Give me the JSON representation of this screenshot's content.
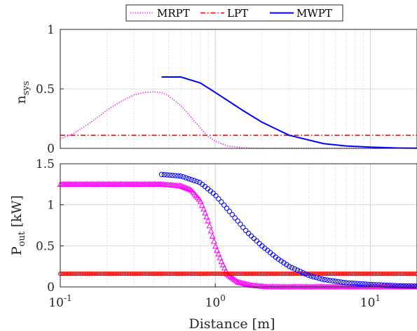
{
  "chart_data": [
    {
      "type": "line",
      "panel": "top",
      "ylabel": "n",
      "ylabel_sub": "sys",
      "xscale": "log",
      "xlim": [
        0.1,
        20
      ],
      "ylim": [
        0,
        1
      ],
      "yticks": [
        0,
        0.5,
        1
      ],
      "ytick_labels": [
        "0",
        "0.5",
        "1"
      ],
      "grid": true,
      "legend": {
        "position": "top-center",
        "orientation": "horizontal"
      },
      "series": [
        {
          "name": "MRPT",
          "color": "#ff00ff",
          "line_style": "dotted",
          "x": [
            0.1,
            0.12,
            0.15,
            0.2,
            0.25,
            0.3,
            0.35,
            0.4,
            0.45,
            0.5,
            0.6,
            0.7,
            0.8,
            0.9,
            1.0,
            1.2,
            1.5,
            2,
            20
          ],
          "y": [
            0.08,
            0.12,
            0.2,
            0.32,
            0.4,
            0.45,
            0.47,
            0.475,
            0.47,
            0.44,
            0.36,
            0.26,
            0.17,
            0.1,
            0.06,
            0.02,
            0.005,
            0.0,
            0.0
          ]
        },
        {
          "name": "LPT",
          "color": "#ff0000",
          "line_style": "dash-dot",
          "x": [
            0.1,
            20
          ],
          "y": [
            0.11,
            0.11
          ]
        },
        {
          "name": "MWPT",
          "color": "#0000ff",
          "line_style": "solid",
          "x": [
            0.45,
            0.6,
            0.8,
            1.0,
            1.5,
            2,
            3,
            5,
            7,
            10,
            15,
            20
          ],
          "y": [
            0.6,
            0.6,
            0.55,
            0.47,
            0.32,
            0.22,
            0.11,
            0.04,
            0.02,
            0.01,
            0.003,
            0.001
          ]
        }
      ]
    },
    {
      "type": "scatter",
      "panel": "bottom",
      "xlabel": "Distance [m]",
      "ylabel": "P",
      "ylabel_sub": "out",
      "ylabel_unit": "[kW]",
      "xscale": "log",
      "xlim": [
        0.1,
        20
      ],
      "ylim": [
        0,
        1.5
      ],
      "xticks": [
        0.1,
        1,
        10
      ],
      "xtick_labels": [
        {
          "base": "10",
          "exp": "-1"
        },
        {
          "base": "10",
          "exp": "0"
        },
        {
          "base": "10",
          "exp": "1"
        }
      ],
      "yticks": [
        0,
        0.5,
        1,
        1.5
      ],
      "ytick_labels": [
        "0",
        "0.5",
        "1",
        "1.5"
      ],
      "grid": true,
      "series": [
        {
          "name": "MRPT",
          "color": "#ff00ff",
          "marker": "triangle",
          "x": [
            0.1,
            0.2,
            0.3,
            0.45,
            0.6,
            0.7,
            0.8,
            0.9,
            1.0,
            1.1,
            1.2,
            1.4,
            1.7,
            2.2,
            3,
            5,
            10,
            20
          ],
          "y": [
            1.25,
            1.25,
            1.25,
            1.25,
            1.23,
            1.18,
            1.05,
            0.8,
            0.5,
            0.3,
            0.15,
            0.06,
            0.02,
            0.0,
            0.0,
            0.0,
            0.0,
            0.0
          ]
        },
        {
          "name": "LPT",
          "color": "#ff0000",
          "marker": "circle",
          "x": [
            0.1,
            20
          ],
          "y": [
            0.16,
            0.16
          ]
        },
        {
          "name": "MWPT",
          "color": "#0000ff",
          "marker": "circle",
          "x": [
            0.45,
            0.6,
            0.8,
            1.0,
            1.3,
            1.6,
            2,
            2.5,
            3,
            4,
            5,
            7,
            10,
            15,
            20
          ],
          "y": [
            1.37,
            1.35,
            1.27,
            1.12,
            0.87,
            0.67,
            0.5,
            0.35,
            0.25,
            0.14,
            0.09,
            0.05,
            0.03,
            0.015,
            0.01
          ]
        }
      ]
    }
  ]
}
